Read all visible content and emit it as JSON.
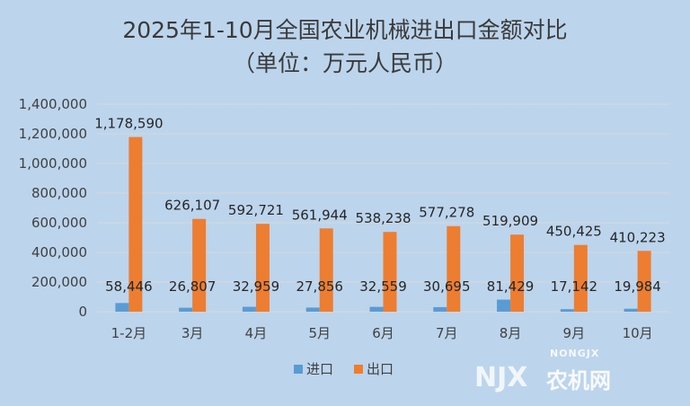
{
  "chart_data": {
    "type": "bar",
    "title": "2025年1-10月全国农业机械进出口金额对比",
    "subtitle": "（单位：万元人民币）",
    "categories": [
      "1-2月",
      "3月",
      "4月",
      "5月",
      "6月",
      "7月",
      "8月",
      "9月",
      "10月"
    ],
    "series": [
      {
        "name": "进口",
        "color": "#5b9bd5",
        "values": [
          58446,
          26807,
          32959,
          27856,
          32559,
          30695,
          81429,
          17142,
          19984
        ]
      },
      {
        "name": "出口",
        "color": "#ed7d31",
        "values": [
          1178590,
          626107,
          592721,
          561944,
          538238,
          577278,
          519909,
          450425,
          410223
        ]
      }
    ],
    "ylim": [
      0,
      1400000
    ],
    "yticks": [
      "0",
      "200,000",
      "400,000",
      "600,000",
      "800,000",
      "1,000,000",
      "1,200,000",
      "1,400,000"
    ],
    "grid": true,
    "legend": "bottom",
    "data_labels": true
  },
  "watermark": {
    "brand": "NONGJX",
    "name": "农机网"
  }
}
